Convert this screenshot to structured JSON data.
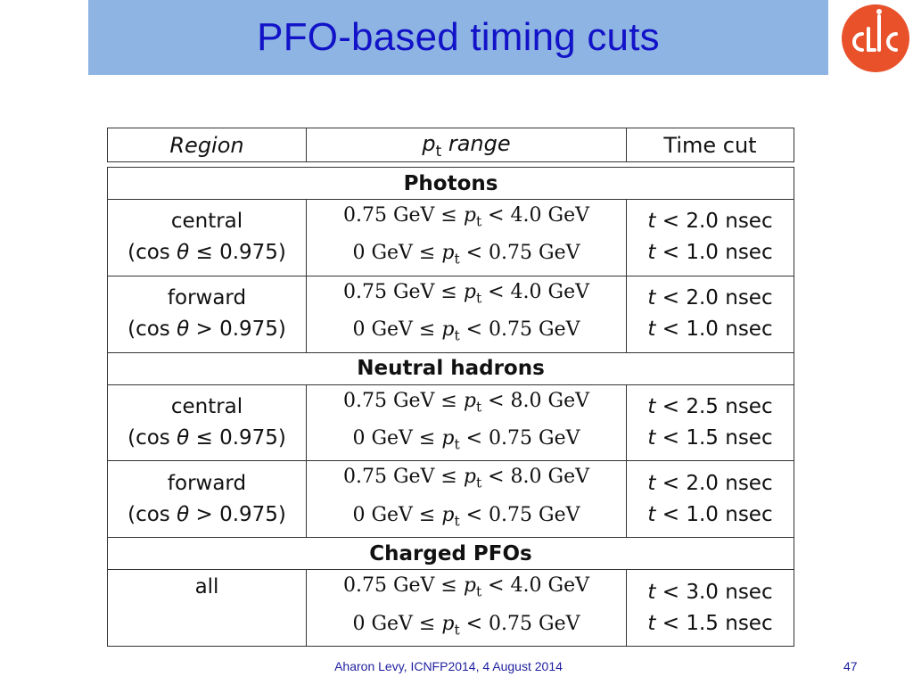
{
  "slide": {
    "title": "PFO-based timing cuts",
    "footer_text": "Aharon Levy, ICNFP2014, 4 August 2014",
    "page_number": "47",
    "logo_text": "CLIC",
    "colors": {
      "title_bar": "#8eb4e3",
      "title_text": "#1212c8",
      "logo": "#e8512a"
    }
  },
  "table": {
    "headers": [
      "Region",
      "pt range",
      "Time cut"
    ],
    "sections": [
      {
        "name": "Photons",
        "rows": [
          {
            "region": [
              "central",
              "(cos θ ≤ 0.975)"
            ],
            "pt": [
              "0.75 GeV ≤ pt < 4.0 GeV",
              "0 GeV ≤ pt < 0.75 GeV"
            ],
            "cut": [
              "t < 2.0 nsec",
              "t < 1.0 nsec"
            ]
          },
          {
            "region": [
              "forward",
              "(cos θ > 0.975)"
            ],
            "pt": [
              "0.75 GeV ≤ pt < 4.0 GeV",
              "0 GeV ≤ pt < 0.75 GeV"
            ],
            "cut": [
              "t < 2.0 nsec",
              "t < 1.0 nsec"
            ]
          }
        ]
      },
      {
        "name": "Neutral hadrons",
        "rows": [
          {
            "region": [
              "central",
              "(cos θ ≤ 0.975)"
            ],
            "pt": [
              "0.75 GeV ≤ pt < 8.0 GeV",
              "0 GeV ≤ pt < 0.75 GeV"
            ],
            "cut": [
              "t < 2.5 nsec",
              "t < 1.5 nsec"
            ]
          },
          {
            "region": [
              "forward",
              "(cos θ > 0.975)"
            ],
            "pt": [
              "0.75 GeV ≤ pt < 8.0 GeV",
              "0 GeV ≤ pt < 0.75 GeV"
            ],
            "cut": [
              "t < 2.0 nsec",
              "t < 1.0 nsec"
            ]
          }
        ]
      },
      {
        "name": "Charged PFOs",
        "rows": [
          {
            "region": [
              "all"
            ],
            "pt": [
              "0.75 GeV ≤ pt < 4.0 GeV",
              "0 GeV ≤ pt < 0.75 GeV"
            ],
            "cut": [
              "t < 3.0 nsec",
              "t < 1.5 nsec"
            ]
          }
        ]
      }
    ]
  }
}
